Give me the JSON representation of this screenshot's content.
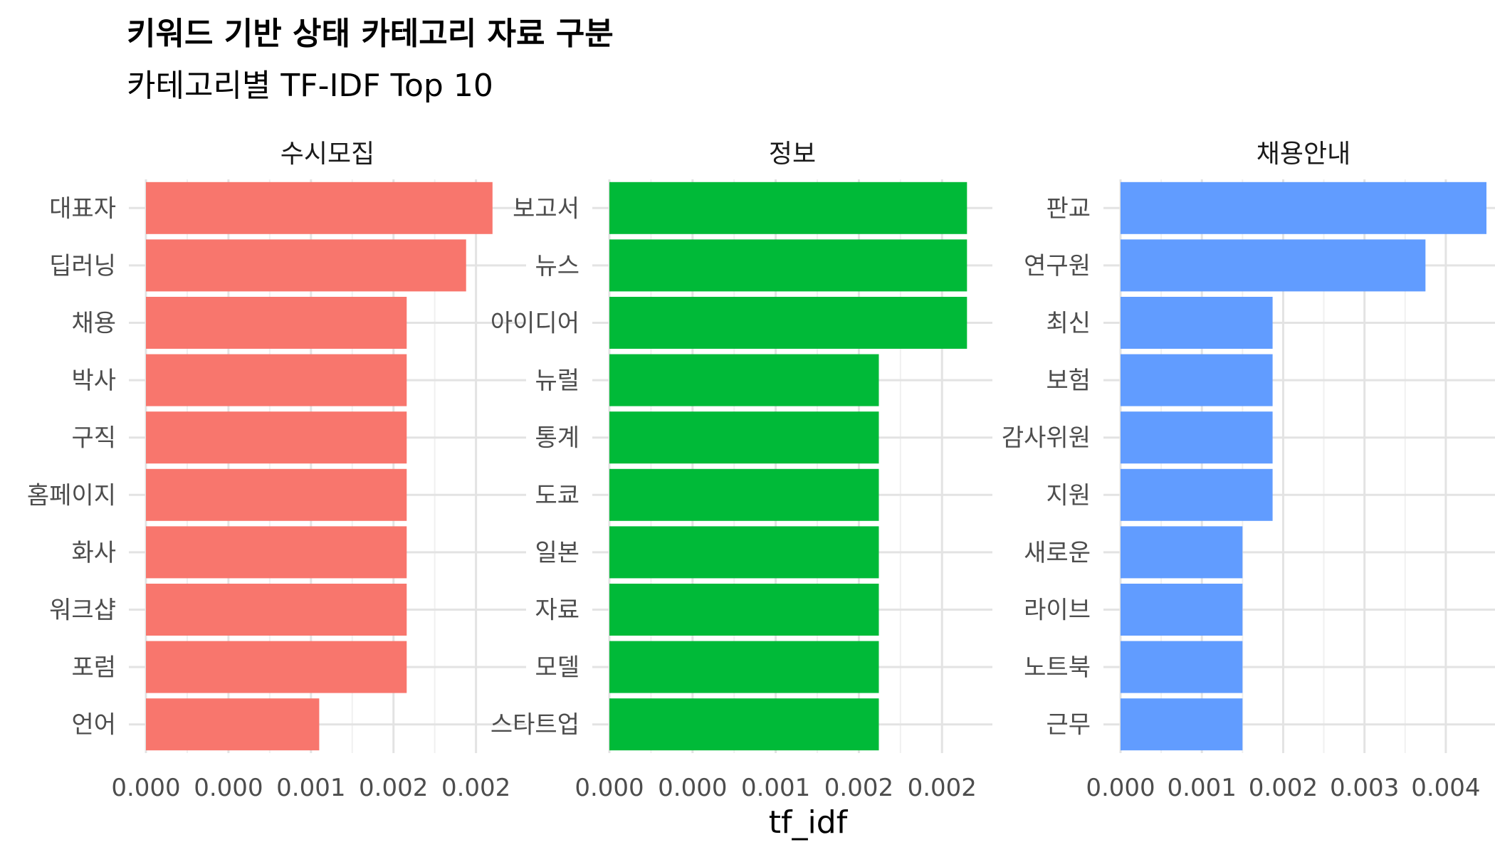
{
  "chart_data": {
    "type": "bar",
    "orientation": "horizontal",
    "title": "키워드 기반 상태 카테고리 자료 구분",
    "subtitle": "카테고리별 TF-IDF Top 10",
    "xlabel": "tf_idf",
    "ylabel": "",
    "grid": true,
    "legend": "none",
    "facets": [
      {
        "name": "수시모집",
        "color": "#F8766D",
        "xlim": [
          0,
          0.0022
        ],
        "ticks": [
          0,
          0.0005,
          0.001,
          0.0015,
          0.002
        ],
        "tick_labels": [
          "0.000",
          "0.000",
          "0.001",
          "0.002",
          "0.002"
        ],
        "categories": [
          "대표자",
          "딥러닝",
          "채용",
          "박사",
          "구직",
          "홈페이지",
          "화사",
          "워크샵",
          "포럼",
          "언어"
        ],
        "values": [
          0.0021,
          0.00194,
          0.00158,
          0.00158,
          0.00158,
          0.00158,
          0.00158,
          0.00158,
          0.00158,
          0.00105
        ]
      },
      {
        "name": "정보",
        "color": "#00BA38",
        "xlim": [
          0,
          0.0022
        ],
        "ticks": [
          0,
          0.0005,
          0.001,
          0.0015,
          0.002
        ],
        "tick_labels": [
          "0.000",
          "0.000",
          "0.001",
          "0.002",
          "0.002"
        ],
        "categories": [
          "보고서",
          "뉴스",
          "아이디어",
          "뉴럴",
          "통계",
          "도쿄",
          "일본",
          "자료",
          "모델",
          "스타트업"
        ],
        "values": [
          0.00215,
          0.00215,
          0.00215,
          0.00162,
          0.00162,
          0.00162,
          0.00162,
          0.00162,
          0.00162,
          0.00162
        ]
      },
      {
        "name": "채용안내",
        "color": "#619CFF",
        "xlim": [
          0,
          0.0045
        ],
        "ticks": [
          0,
          0.001,
          0.002,
          0.003,
          0.004
        ],
        "tick_labels": [
          "0.000",
          "0.001",
          "0.002",
          "0.003",
          "0.004"
        ],
        "categories": [
          "판교",
          "연구원",
          "최신",
          "보험",
          "감사위원",
          "지원",
          "새로운",
          "라이브",
          "노트북",
          "근무"
        ],
        "values": [
          0.0045,
          0.00375,
          0.00187,
          0.00187,
          0.00187,
          0.00187,
          0.0015,
          0.0015,
          0.0015,
          0.0015
        ]
      }
    ]
  }
}
